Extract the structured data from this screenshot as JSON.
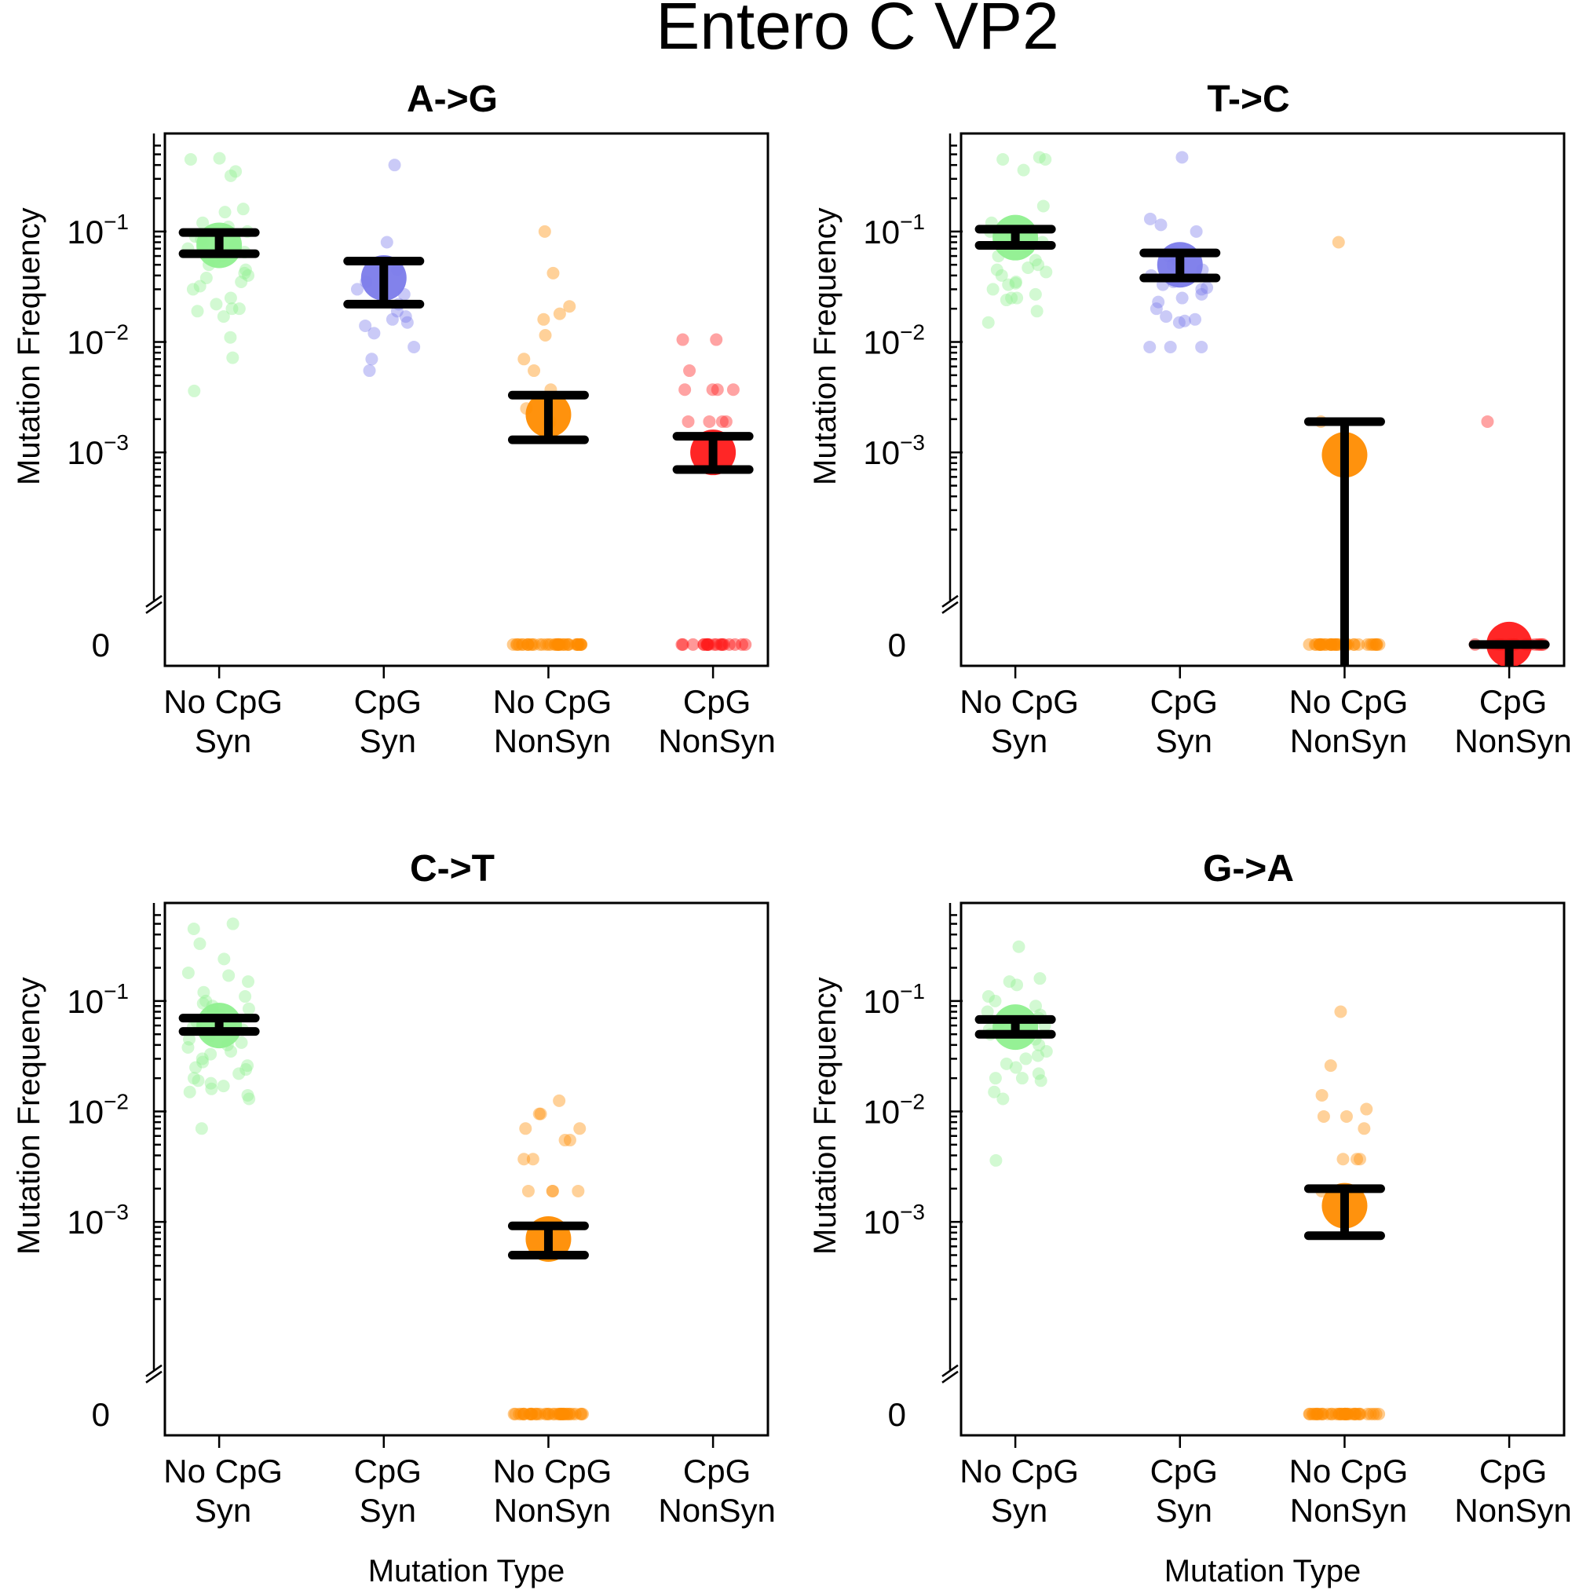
{
  "title": "Entero C VP2",
  "colors": {
    "no_cpg_syn": "#8ff08f",
    "cpg_syn": "#7b7bea",
    "no_cpg_nonsyn": "#ff8c00",
    "cpg_nonsyn": "#ff1a1a",
    "error_bar": "#000000",
    "frame": "#000000"
  },
  "chart_data": [
    {
      "type": "scatter",
      "title": "A->G",
      "ylabel": "Mutation Frequency",
      "xlabel": "",
      "yscale": "log",
      "ylim": [
        0.00015,
        0.7
      ],
      "yticks": [
        "0",
        "10^-3",
        "10^-2",
        "10^-1"
      ],
      "categories": [
        "No CpG\nSyn",
        "CpG\nSyn",
        "No CpG\nNonSyn",
        "CpG\nNonSyn"
      ],
      "series": [
        {
          "category": "No CpG\nSyn",
          "mean": 0.075,
          "ci": [
            0.063,
            0.098
          ],
          "values": [
            0.45,
            0.46,
            0.35,
            0.32,
            0.16,
            0.15,
            0.12,
            0.11,
            0.1,
            0.09,
            0.085,
            0.08,
            0.075,
            0.07,
            0.065,
            0.06,
            0.055,
            0.05,
            0.045,
            0.042,
            0.04,
            0.038,
            0.035,
            0.032,
            0.03,
            0.025,
            0.022,
            0.02,
            0.02,
            0.019,
            0.017,
            0.011,
            0.0072,
            0.0036
          ],
          "zero_count": 0
        },
        {
          "category": "CpG\nSyn",
          "mean": 0.038,
          "ci": [
            0.022,
            0.054
          ],
          "values": [
            0.4,
            0.08,
            0.045,
            0.035,
            0.03,
            0.027,
            0.022,
            0.019,
            0.017,
            0.016,
            0.015,
            0.014,
            0.012,
            0.009,
            0.007,
            0.0055
          ],
          "zero_count": 0
        },
        {
          "category": "No CpG\nNonSyn",
          "mean": 0.0022,
          "ci": [
            0.0013,
            0.0033
          ],
          "values": [
            0.1,
            0.042,
            0.021,
            0.018,
            0.016,
            0.0115,
            0.007,
            0.0055,
            0.0037,
            0.0025,
            0.0019,
            0.0018
          ],
          "zero_count": 40
        },
        {
          "category": "CpG\nNonSyn",
          "mean": 0.001,
          "ci": [
            0.0007,
            0.0014
          ],
          "values": [
            0.0105,
            0.0105,
            0.0055,
            0.0037,
            0.0037,
            0.0037,
            0.0037,
            0.0019,
            0.0019,
            0.0019,
            0.0019
          ],
          "zero_count": 20
        }
      ]
    },
    {
      "type": "scatter",
      "title": "T->C",
      "ylabel": "Mutation Frequency",
      "xlabel": "",
      "yscale": "log",
      "ylim": [
        0.00015,
        0.7
      ],
      "yticks": [
        "0",
        "10^-3",
        "10^-2",
        "10^-1"
      ],
      "categories": [
        "No CpG\nSyn",
        "CpG\nSyn",
        "No CpG\nNonSyn",
        "CpG\nNonSyn"
      ],
      "series": [
        {
          "category": "No CpG\nSyn",
          "mean": 0.088,
          "ci": [
            0.075,
            0.105
          ],
          "values": [
            0.47,
            0.45,
            0.45,
            0.36,
            0.17,
            0.12,
            0.1,
            0.09,
            0.08,
            0.07,
            0.06,
            0.055,
            0.05,
            0.047,
            0.045,
            0.043,
            0.04,
            0.035,
            0.034,
            0.033,
            0.03,
            0.027,
            0.025,
            0.025,
            0.024,
            0.019,
            0.015
          ],
          "zero_count": 0
        },
        {
          "category": "CpG\nSyn",
          "mean": 0.05,
          "ci": [
            0.038,
            0.064
          ],
          "values": [
            0.47,
            0.13,
            0.115,
            0.1,
            0.065,
            0.06,
            0.055,
            0.05,
            0.045,
            0.04,
            0.035,
            0.033,
            0.031,
            0.03,
            0.027,
            0.025,
            0.023,
            0.02,
            0.017,
            0.016,
            0.015,
            0.0155,
            0.009,
            0.009,
            0.009
          ],
          "zero_count": 0
        },
        {
          "category": "No CpG\nNonSyn",
          "mean": 0.00095,
          "ci": [
            0.0,
            0.0019
          ],
          "values": [
            0.08,
            0.0019
          ],
          "zero_count": 36
        },
        {
          "category": "CpG\nNonSyn",
          "mean": 0.0,
          "ci": [
            0.0,
            0.0
          ],
          "values": [
            0.0019
          ],
          "zero_count": 20
        }
      ]
    },
    {
      "type": "scatter",
      "title": "C->T",
      "ylabel": "Mutation Frequency",
      "xlabel": "Mutation Type",
      "yscale": "log",
      "ylim": [
        0.00015,
        0.7
      ],
      "yticks": [
        "0",
        "10^-3",
        "10^-2",
        "10^-1"
      ],
      "categories": [
        "No CpG\nSyn",
        "CpG\nSyn",
        "No CpG\nNonSyn",
        "CpG\nNonSyn"
      ],
      "series": [
        {
          "category": "No CpG\nSyn",
          "mean": 0.06,
          "ci": [
            0.053,
            0.07
          ],
          "values": [
            0.5,
            0.45,
            0.33,
            0.24,
            0.18,
            0.17,
            0.15,
            0.12,
            0.11,
            0.1,
            0.095,
            0.09,
            0.085,
            0.08,
            0.075,
            0.07,
            0.065,
            0.06,
            0.058,
            0.055,
            0.05,
            0.048,
            0.045,
            0.042,
            0.04,
            0.038,
            0.035,
            0.033,
            0.03,
            0.028,
            0.026,
            0.025,
            0.024,
            0.022,
            0.02,
            0.019,
            0.018,
            0.017,
            0.016,
            0.015,
            0.014,
            0.013,
            0.007
          ],
          "zero_count": 0
        },
        {
          "category": "CpG\nSyn",
          "mean": null,
          "ci": null,
          "values": [],
          "zero_count": 0
        },
        {
          "category": "No CpG\nNonSyn",
          "mean": 0.0007,
          "ci": [
            0.0005,
            0.00092
          ],
          "values": [
            0.0125,
            0.0095,
            0.0095,
            0.007,
            0.007,
            0.0055,
            0.0055,
            0.0037,
            0.0037,
            0.0019,
            0.0019,
            0.0019,
            0.0019
          ],
          "zero_count": 40
        },
        {
          "category": "CpG\nNonSyn",
          "mean": null,
          "ci": null,
          "values": [],
          "zero_count": 0
        }
      ]
    },
    {
      "type": "scatter",
      "title": "G->A",
      "ylabel": "Mutation Frequency",
      "xlabel": "Mutation Type",
      "yscale": "log",
      "ylim": [
        0.00015,
        0.7
      ],
      "yticks": [
        "0",
        "10^-3",
        "10^-2",
        "10^-1"
      ],
      "categories": [
        "No CpG\nSyn",
        "CpG\nSyn",
        "No CpG\nNonSyn",
        "CpG\nNonSyn"
      ],
      "series": [
        {
          "category": "No CpG\nSyn",
          "mean": 0.058,
          "ci": [
            0.05,
            0.068
          ],
          "values": [
            0.31,
            0.16,
            0.15,
            0.14,
            0.11,
            0.1,
            0.09,
            0.08,
            0.075,
            0.07,
            0.065,
            0.06,
            0.055,
            0.05,
            0.045,
            0.04,
            0.035,
            0.032,
            0.03,
            0.027,
            0.025,
            0.022,
            0.02,
            0.02,
            0.019,
            0.015,
            0.013,
            0.0036
          ],
          "zero_count": 0
        },
        {
          "category": "CpG\nSyn",
          "mean": null,
          "ci": null,
          "values": [],
          "zero_count": 0
        },
        {
          "category": "No CpG\nNonSyn",
          "mean": 0.0014,
          "ci": [
            0.00075,
            0.002
          ],
          "values": [
            0.08,
            0.026,
            0.014,
            0.0105,
            0.009,
            0.009,
            0.007,
            0.0037,
            0.0037,
            0.0037,
            0.0019,
            0.0019
          ],
          "zero_count": 40
        },
        {
          "category": "CpG\nNonSyn",
          "mean": null,
          "ci": null,
          "values": [],
          "zero_count": 0
        }
      ]
    }
  ]
}
